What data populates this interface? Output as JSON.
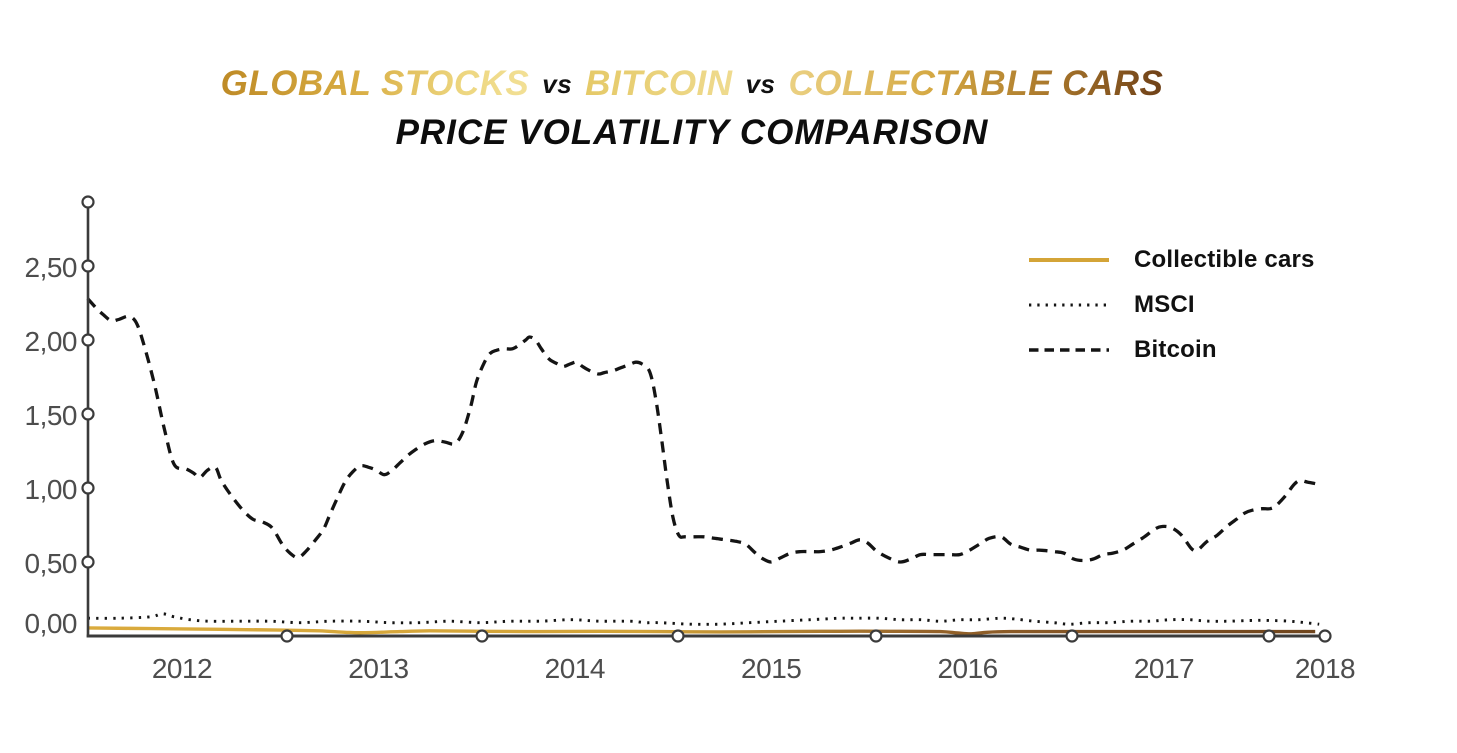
{
  "title": {
    "line1_segments": [
      {
        "text": "GLOBAL STOCKS",
        "style": "gold-gradient"
      },
      {
        "text": "vs",
        "style": "black"
      },
      {
        "text": "BITCOIN",
        "style": "light-gold-gradient"
      },
      {
        "text": "vs",
        "style": "black"
      },
      {
        "text": "COLLECTABLE CARS",
        "style": "gold-to-brown-gradient"
      }
    ],
    "line2": "PRICE VOLATILITY COMPARISON"
  },
  "legend": {
    "items": [
      {
        "label": "Collectible cars",
        "line_style": "solid",
        "color": "#D4A437"
      },
      {
        "label": "MSCI",
        "line_style": "dotted",
        "color": "#141414"
      },
      {
        "label": "Bitcoin",
        "line_style": "dashed",
        "color": "#141414"
      }
    ]
  },
  "colors": {
    "gold": "#D4A437",
    "gold_light": "#EFD98F",
    "brown": "#70451D",
    "ink": "#141414",
    "axis": "#3B3B3B",
    "tick_text": "#4D4D4D",
    "background": "#FFFFFF"
  },
  "chart_data": {
    "type": "line",
    "title": "GLOBAL STOCKS vs BITCOIN vs COLLECTABLE CARS — PRICE VOLATILITY COMPARISON",
    "xlabel": "",
    "ylabel": "",
    "grid": false,
    "legend_position": "top-right",
    "decimal_separator": ",",
    "xlim": [
      2011.5,
      2018
    ],
    "ylim": [
      0,
      2.95
    ],
    "x_ticks": {
      "labels": [
        "2012",
        "2013",
        "2014",
        "2015",
        "2016",
        "2017",
        "2018"
      ],
      "years": [
        2012,
        2013,
        2014,
        2015,
        2016,
        2017,
        2018
      ]
    },
    "y_ticks": {
      "labels": [
        "0,00",
        "0,50",
        "1,00",
        "1,50",
        "2,00",
        "2,50"
      ],
      "values": [
        0,
        0.5,
        1,
        1.5,
        2,
        2.5
      ]
    },
    "series": [
      {
        "name": "Collectible cars",
        "style": "solid",
        "color": "#D4A437",
        "gradient_stops": [
          [
            "0%",
            "#DAAB3D"
          ],
          [
            "45%",
            "#D2A338"
          ],
          [
            "58%",
            "#B08030"
          ],
          [
            "68%",
            "#96642A"
          ],
          [
            "80%",
            "#845525"
          ],
          [
            "100%",
            "#6F451D"
          ]
        ],
        "points": [
          [
            2011.52,
            0.055
          ],
          [
            2011.84,
            0.05
          ],
          [
            2012.19,
            0.045
          ],
          [
            2012.5,
            0.04
          ],
          [
            2012.7,
            0.035
          ],
          [
            2012.83,
            0.025
          ],
          [
            2012.93,
            0.022
          ],
          [
            2013.11,
            0.03
          ],
          [
            2013.26,
            0.035
          ],
          [
            2013.52,
            0.032
          ],
          [
            2013.82,
            0.03
          ],
          [
            2014.13,
            0.032
          ],
          [
            2014.43,
            0.03
          ],
          [
            2014.74,
            0.028
          ],
          [
            2015.04,
            0.03
          ],
          [
            2015.35,
            0.032
          ],
          [
            2015.66,
            0.032
          ],
          [
            2015.86,
            0.03
          ],
          [
            2015.95,
            0.02
          ],
          [
            2016.02,
            0.015
          ],
          [
            2016.1,
            0.025
          ],
          [
            2016.22,
            0.03
          ],
          [
            2016.47,
            0.03
          ],
          [
            2016.78,
            0.03
          ],
          [
            2017.08,
            0.03
          ],
          [
            2017.39,
            0.03
          ],
          [
            2017.69,
            0.03
          ],
          [
            2017.77,
            0.03
          ]
        ]
      },
      {
        "name": "MSCI",
        "style": "dotted",
        "color": "#141414",
        "points": [
          [
            2011.52,
            0.12
          ],
          [
            2011.68,
            0.12
          ],
          [
            2011.84,
            0.13
          ],
          [
            2011.9,
            0.15
          ],
          [
            2011.96,
            0.13
          ],
          [
            2012.04,
            0.11
          ],
          [
            2012.14,
            0.1
          ],
          [
            2012.3,
            0.1
          ],
          [
            2012.45,
            0.1
          ],
          [
            2012.6,
            0.09
          ],
          [
            2012.75,
            0.1
          ],
          [
            2012.91,
            0.1
          ],
          [
            2013.06,
            0.09
          ],
          [
            2013.21,
            0.09
          ],
          [
            2013.36,
            0.1
          ],
          [
            2013.52,
            0.09
          ],
          [
            2013.67,
            0.1
          ],
          [
            2013.82,
            0.1
          ],
          [
            2013.98,
            0.11
          ],
          [
            2014.13,
            0.1
          ],
          [
            2014.28,
            0.1
          ],
          [
            2014.36,
            0.09
          ],
          [
            2014.43,
            0.09
          ],
          [
            2014.59,
            0.08
          ],
          [
            2014.74,
            0.08
          ],
          [
            2014.89,
            0.09
          ],
          [
            2015.04,
            0.1
          ],
          [
            2015.2,
            0.11
          ],
          [
            2015.35,
            0.12
          ],
          [
            2015.44,
            0.12
          ],
          [
            2015.55,
            0.12
          ],
          [
            2015.66,
            0.11
          ],
          [
            2015.76,
            0.11
          ],
          [
            2015.86,
            0.1
          ],
          [
            2015.96,
            0.11
          ],
          [
            2016.06,
            0.11
          ],
          [
            2016.16,
            0.12
          ],
          [
            2016.24,
            0.115
          ],
          [
            2016.34,
            0.1
          ],
          [
            2016.44,
            0.09
          ],
          [
            2016.52,
            0.08
          ],
          [
            2016.62,
            0.09
          ],
          [
            2016.72,
            0.09
          ],
          [
            2016.83,
            0.1
          ],
          [
            2016.93,
            0.1
          ],
          [
            2017.03,
            0.11
          ],
          [
            2017.13,
            0.11
          ],
          [
            2017.23,
            0.1
          ],
          [
            2017.33,
            0.1
          ],
          [
            2017.44,
            0.105
          ],
          [
            2017.54,
            0.105
          ],
          [
            2017.64,
            0.1
          ],
          [
            2017.72,
            0.09
          ],
          [
            2017.79,
            0.08
          ]
        ]
      },
      {
        "name": "Bitcoin",
        "style": "dashed",
        "color": "#141414",
        "points": [
          [
            2011.52,
            2.28
          ],
          [
            2011.56,
            2.22
          ],
          [
            2011.6,
            2.17
          ],
          [
            2011.64,
            2.13
          ],
          [
            2011.68,
            2.14
          ],
          [
            2011.73,
            2.16
          ],
          [
            2011.77,
            2.11
          ],
          [
            2011.81,
            1.95
          ],
          [
            2011.86,
            1.7
          ],
          [
            2011.91,
            1.4
          ],
          [
            2011.96,
            1.16
          ],
          [
            2012.02,
            1.13
          ],
          [
            2012.06,
            1.1
          ],
          [
            2012.09,
            1.07
          ],
          [
            2012.13,
            1.12
          ],
          [
            2012.17,
            1.14
          ],
          [
            2012.2,
            1.05
          ],
          [
            2012.25,
            0.95
          ],
          [
            2012.31,
            0.85
          ],
          [
            2012.36,
            0.79
          ],
          [
            2012.41,
            0.77
          ],
          [
            2012.46,
            0.73
          ],
          [
            2012.51,
            0.62
          ],
          [
            2012.55,
            0.56
          ],
          [
            2012.59,
            0.53
          ],
          [
            2012.63,
            0.57
          ],
          [
            2012.68,
            0.65
          ],
          [
            2012.72,
            0.72
          ],
          [
            2012.75,
            0.81
          ],
          [
            2012.79,
            0.93
          ],
          [
            2012.83,
            1.04
          ],
          [
            2012.87,
            1.11
          ],
          [
            2012.91,
            1.15
          ],
          [
            2012.95,
            1.14
          ],
          [
            2012.99,
            1.12
          ],
          [
            2013.03,
            1.09
          ],
          [
            2013.07,
            1.12
          ],
          [
            2013.11,
            1.17
          ],
          [
            2013.15,
            1.22
          ],
          [
            2013.19,
            1.26
          ],
          [
            2013.24,
            1.3
          ],
          [
            2013.29,
            1.32
          ],
          [
            2013.34,
            1.31
          ],
          [
            2013.39,
            1.3
          ],
          [
            2013.43,
            1.38
          ],
          [
            2013.47,
            1.55
          ],
          [
            2013.5,
            1.72
          ],
          [
            2013.54,
            1.85
          ],
          [
            2013.57,
            1.91
          ],
          [
            2013.6,
            1.93
          ],
          [
            2013.64,
            1.94
          ],
          [
            2013.68,
            1.94
          ],
          [
            2013.71,
            1.96
          ],
          [
            2013.75,
            2.0
          ],
          [
            2013.77,
            2.02
          ],
          [
            2013.8,
            2.0
          ],
          [
            2013.83,
            1.94
          ],
          [
            2013.87,
            1.87
          ],
          [
            2013.91,
            1.84
          ],
          [
            2013.94,
            1.82
          ],
          [
            2013.98,
            1.84
          ],
          [
            2014.01,
            1.85
          ],
          [
            2014.04,
            1.82
          ],
          [
            2014.08,
            1.79
          ],
          [
            2014.12,
            1.77
          ],
          [
            2014.15,
            1.78
          ],
          [
            2014.19,
            1.79
          ],
          [
            2014.23,
            1.81
          ],
          [
            2014.27,
            1.83
          ],
          [
            2014.31,
            1.85
          ],
          [
            2014.34,
            1.84
          ],
          [
            2014.38,
            1.79
          ],
          [
            2014.41,
            1.62
          ],
          [
            2014.44,
            1.35
          ],
          [
            2014.47,
            1.05
          ],
          [
            2014.5,
            0.8
          ],
          [
            2014.53,
            0.68
          ],
          [
            2014.56,
            0.67
          ],
          [
            2014.61,
            0.67
          ],
          [
            2014.66,
            0.67
          ],
          [
            2014.71,
            0.66
          ],
          [
            2014.77,
            0.65
          ],
          [
            2014.82,
            0.64
          ],
          [
            2014.87,
            0.62
          ],
          [
            2014.92,
            0.56
          ],
          [
            2014.96,
            0.52
          ],
          [
            2015.0,
            0.5
          ],
          [
            2015.05,
            0.53
          ],
          [
            2015.1,
            0.56
          ],
          [
            2015.15,
            0.57
          ],
          [
            2015.2,
            0.57
          ],
          [
            2015.25,
            0.57
          ],
          [
            2015.3,
            0.58
          ],
          [
            2015.35,
            0.6
          ],
          [
            2015.41,
            0.63
          ],
          [
            2015.45,
            0.65
          ],
          [
            2015.49,
            0.63
          ],
          [
            2015.54,
            0.57
          ],
          [
            2015.61,
            0.52
          ],
          [
            2015.66,
            0.5
          ],
          [
            2015.71,
            0.52
          ],
          [
            2015.76,
            0.55
          ],
          [
            2015.81,
            0.55
          ],
          [
            2015.86,
            0.55
          ],
          [
            2015.91,
            0.55
          ],
          [
            2015.96,
            0.55
          ],
          [
            2016.01,
            0.58
          ],
          [
            2016.06,
            0.62
          ],
          [
            2016.11,
            0.66
          ],
          [
            2016.17,
            0.67
          ],
          [
            2016.22,
            0.62
          ],
          [
            2016.27,
            0.6
          ],
          [
            2016.32,
            0.58
          ],
          [
            2016.37,
            0.58
          ],
          [
            2016.44,
            0.57
          ],
          [
            2016.49,
            0.56
          ],
          [
            2016.54,
            0.52
          ],
          [
            2016.59,
            0.51
          ],
          [
            2016.64,
            0.52
          ],
          [
            2016.69,
            0.55
          ],
          [
            2016.74,
            0.56
          ],
          [
            2016.79,
            0.58
          ],
          [
            2016.84,
            0.62
          ],
          [
            2016.9,
            0.67
          ],
          [
            2016.95,
            0.72
          ],
          [
            2016.99,
            0.74
          ],
          [
            2017.04,
            0.73
          ],
          [
            2017.09,
            0.68
          ],
          [
            2017.14,
            0.59
          ],
          [
            2017.17,
            0.58
          ],
          [
            2017.22,
            0.64
          ],
          [
            2017.27,
            0.68
          ],
          [
            2017.32,
            0.74
          ],
          [
            2017.37,
            0.79
          ],
          [
            2017.41,
            0.83
          ],
          [
            2017.45,
            0.85
          ],
          [
            2017.5,
            0.86
          ],
          [
            2017.54,
            0.86
          ],
          [
            2017.57,
            0.88
          ],
          [
            2017.62,
            0.95
          ],
          [
            2017.66,
            1.02
          ],
          [
            2017.69,
            1.05
          ],
          [
            2017.73,
            1.04
          ],
          [
            2017.77,
            1.03
          ]
        ]
      }
    ]
  }
}
